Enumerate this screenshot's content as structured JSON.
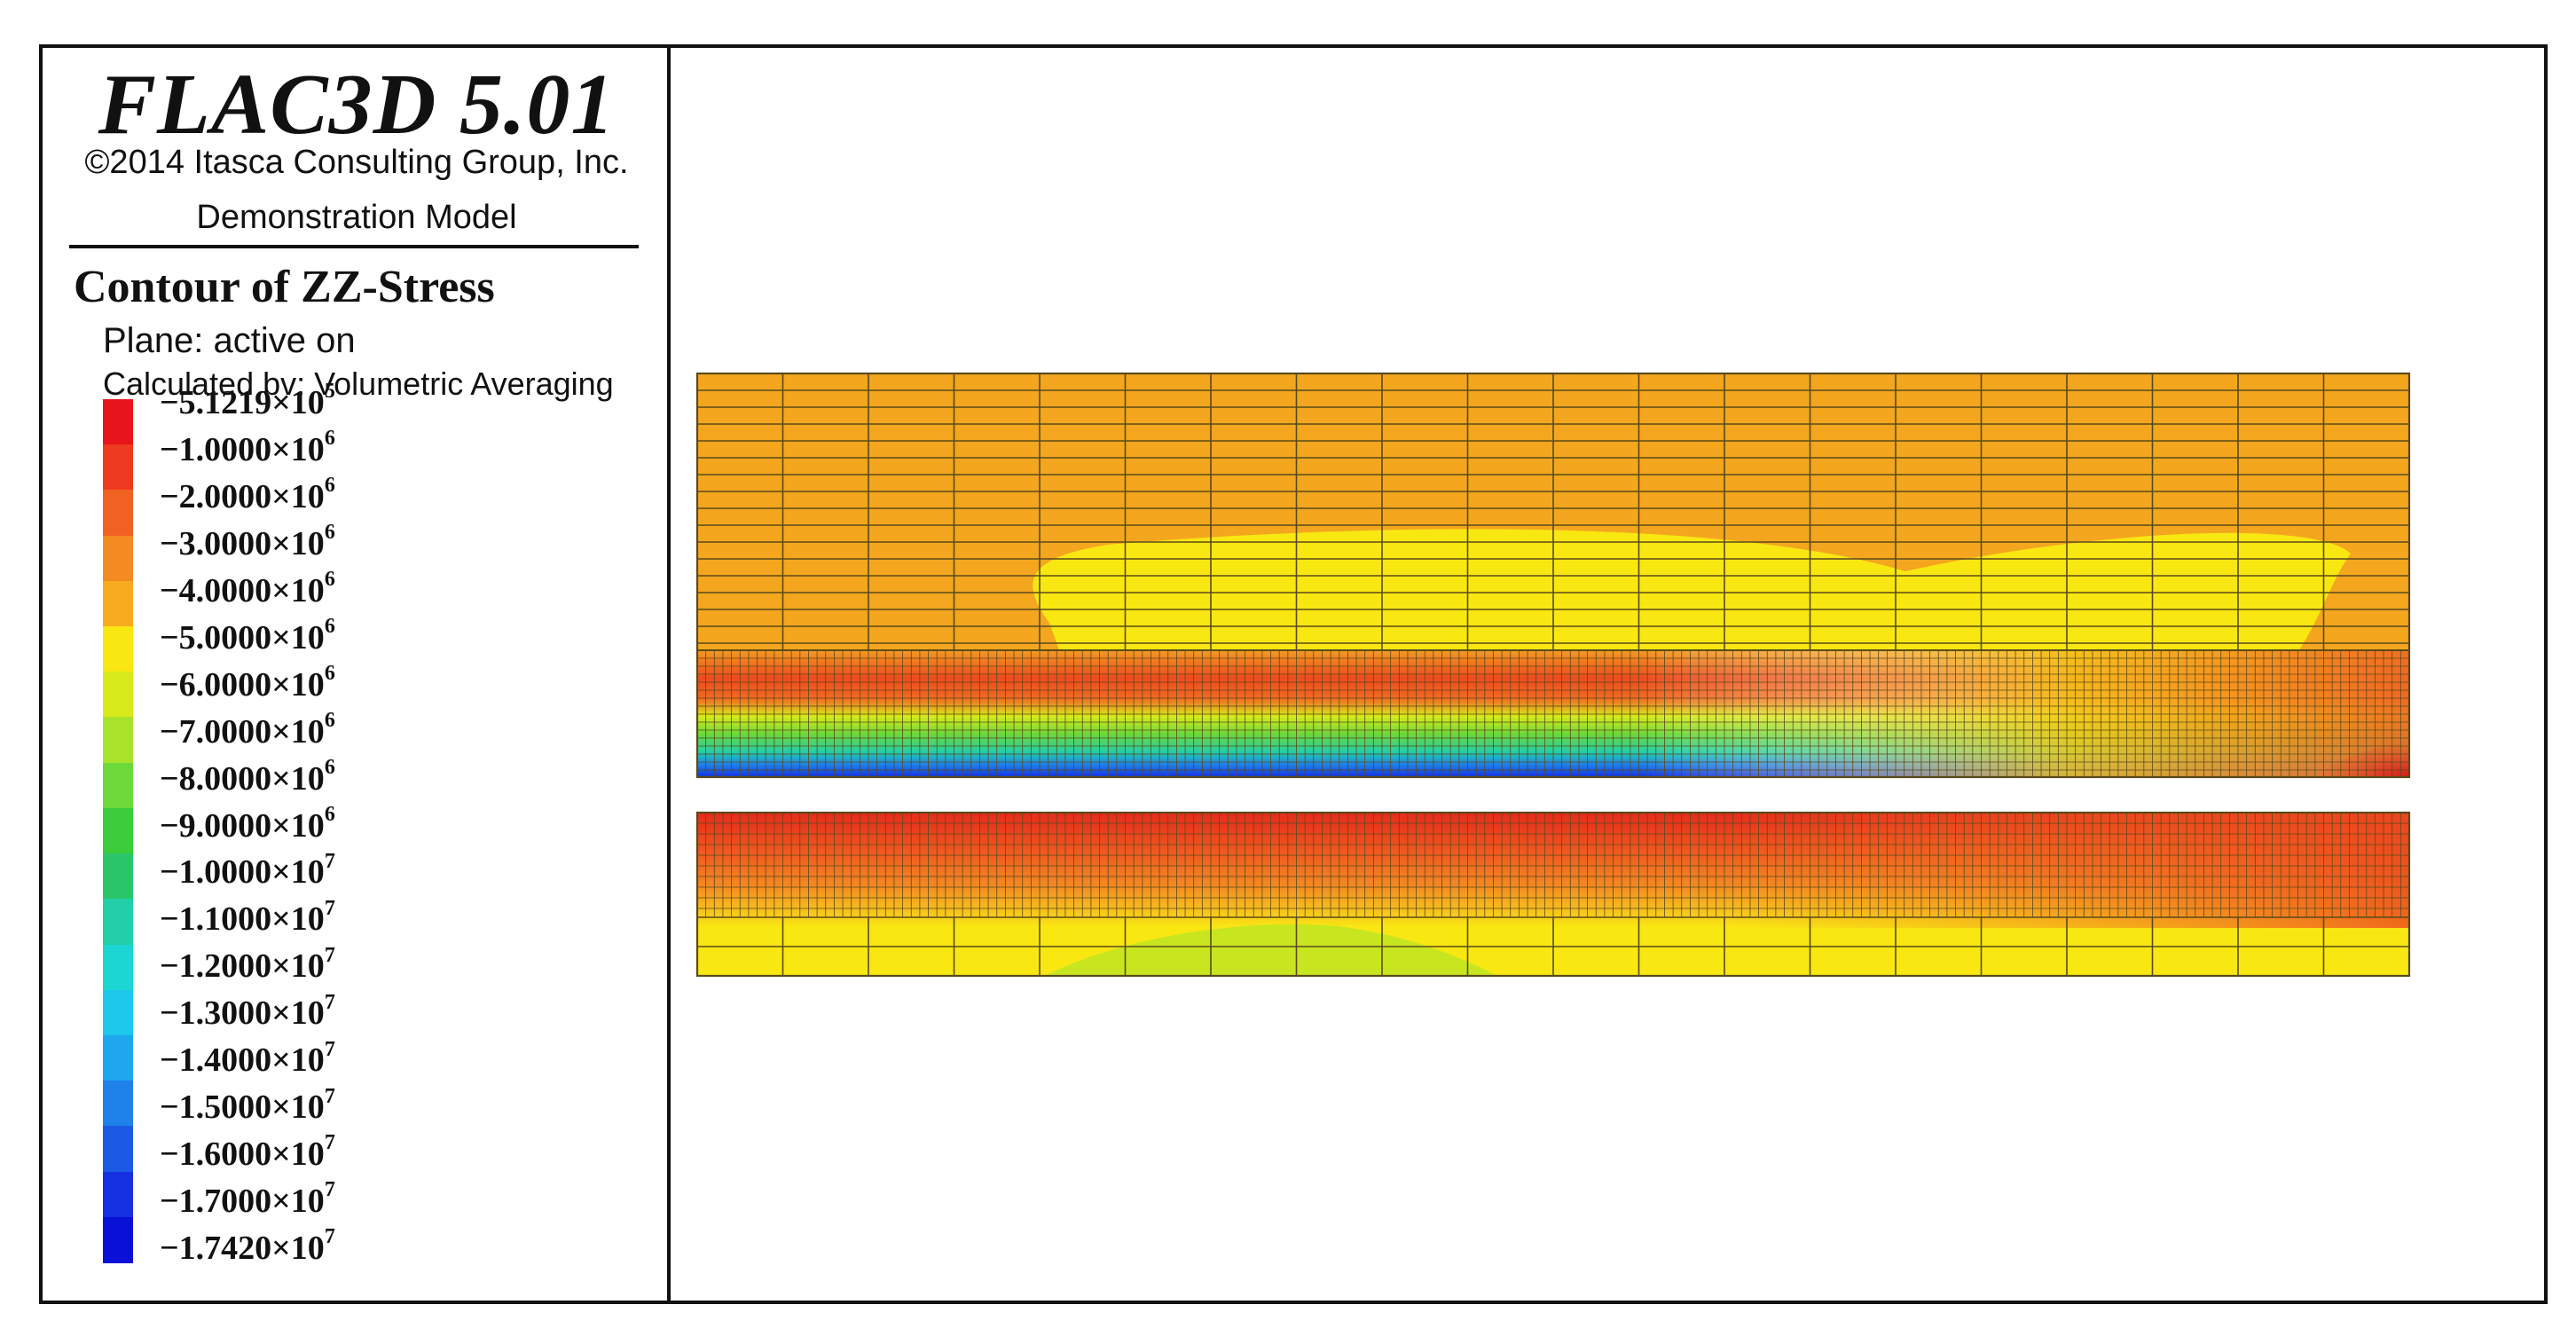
{
  "header": {
    "app_title": "FLAC3D 5.01",
    "copyright": "©2014 Itasca Consulting Group, Inc.",
    "model_name": "Demonstration Model"
  },
  "legend": {
    "title": "Contour of ZZ-Stress",
    "plane": "Plane: active on",
    "calculated_by": "Calculated bv: Volumetric Averaging",
    "levels": [
      {
        "mantissa": "5.1219",
        "exp": "5",
        "color": "#e8141c"
      },
      {
        "mantissa": "1.0000",
        "exp": "6",
        "color": "#ee3a1e"
      },
      {
        "mantissa": "2.0000",
        "exp": "6",
        "color": "#f16222"
      },
      {
        "mantissa": "3.0000",
        "exp": "6",
        "color": "#f38a22"
      },
      {
        "mantissa": "4.0000",
        "exp": "6",
        "color": "#f7aa1e"
      },
      {
        "mantissa": "5.0000",
        "exp": "6",
        "color": "#f9e712"
      },
      {
        "mantissa": "6.0000",
        "exp": "6",
        "color": "#d8ea1a"
      },
      {
        "mantissa": "7.0000",
        "exp": "6",
        "color": "#a8e22a"
      },
      {
        "mantissa": "8.0000",
        "exp": "6",
        "color": "#6dd83a"
      },
      {
        "mantissa": "9.0000",
        "exp": "6",
        "color": "#3ccc3c"
      },
      {
        "mantissa": "1.0000",
        "exp": "7",
        "color": "#2cc66a"
      },
      {
        "mantissa": "1.1000",
        "exp": "7",
        "color": "#22cfa8"
      },
      {
        "mantissa": "1.2000",
        "exp": "7",
        "color": "#1cd6d4"
      },
      {
        "mantissa": "1.3000",
        "exp": "7",
        "color": "#1ec8ea"
      },
      {
        "mantissa": "1.4000",
        "exp": "7",
        "color": "#1ea6ee"
      },
      {
        "mantissa": "1.5000",
        "exp": "7",
        "color": "#1e82ea"
      },
      {
        "mantissa": "1.6000",
        "exp": "7",
        "color": "#1c5ae6"
      },
      {
        "mantissa": "1.7000",
        "exp": "7",
        "color": "#1430e0"
      },
      {
        "mantissa": "1.7420",
        "exp": "7",
        "color": "#0a10d8"
      }
    ]
  },
  "model": {
    "upper_layer_color": "#f3a61e",
    "yellow_zone_color": "#f9e712",
    "gap_color": "#ffffff",
    "mesh_line_color": "#5a4a1a"
  }
}
